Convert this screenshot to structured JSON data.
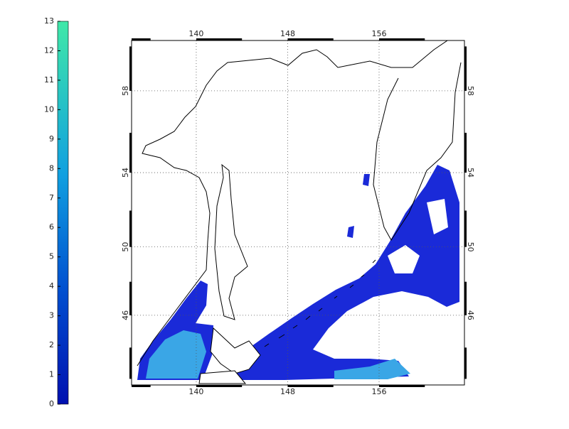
{
  "colorbar": {
    "lim": [
      0,
      13
    ],
    "ticks": [
      0,
      1,
      2,
      3,
      4,
      5,
      6,
      7,
      8,
      9,
      10,
      11,
      12,
      13
    ]
  },
  "map": {
    "lon_lim": [
      134.34,
      163.47
    ],
    "lat_lim": [
      41.6,
      60.26
    ],
    "lon_ticks": [
      140,
      148,
      156
    ],
    "lat_ticks": [
      46,
      50,
      54,
      58
    ]
  }
}
